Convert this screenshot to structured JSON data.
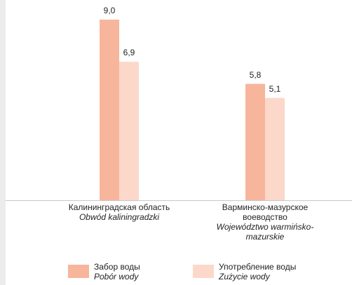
{
  "chart_data": {
    "type": "bar",
    "categories": [
      "Калининградская область",
      "Варминско-мазурское воеводство"
    ],
    "categories_secondary": [
      "Obwód kaliningradzki",
      "Województwo warmińsko-mazurskie"
    ],
    "series": [
      {
        "name": "Забор воды",
        "name_secondary": "Pobór wody",
        "color": "#f7b69c",
        "values": [
          9.0,
          5.8
        ],
        "value_labels": [
          "9,0",
          "5,8"
        ]
      },
      {
        "name": "Употребление воды",
        "name_secondary": "Zużycie wody",
        "color": "#fcd8ca",
        "values": [
          6.9,
          5.1
        ],
        "value_labels": [
          "6,9",
          "5,1"
        ]
      }
    ],
    "ylim": [
      0,
      9
    ]
  }
}
